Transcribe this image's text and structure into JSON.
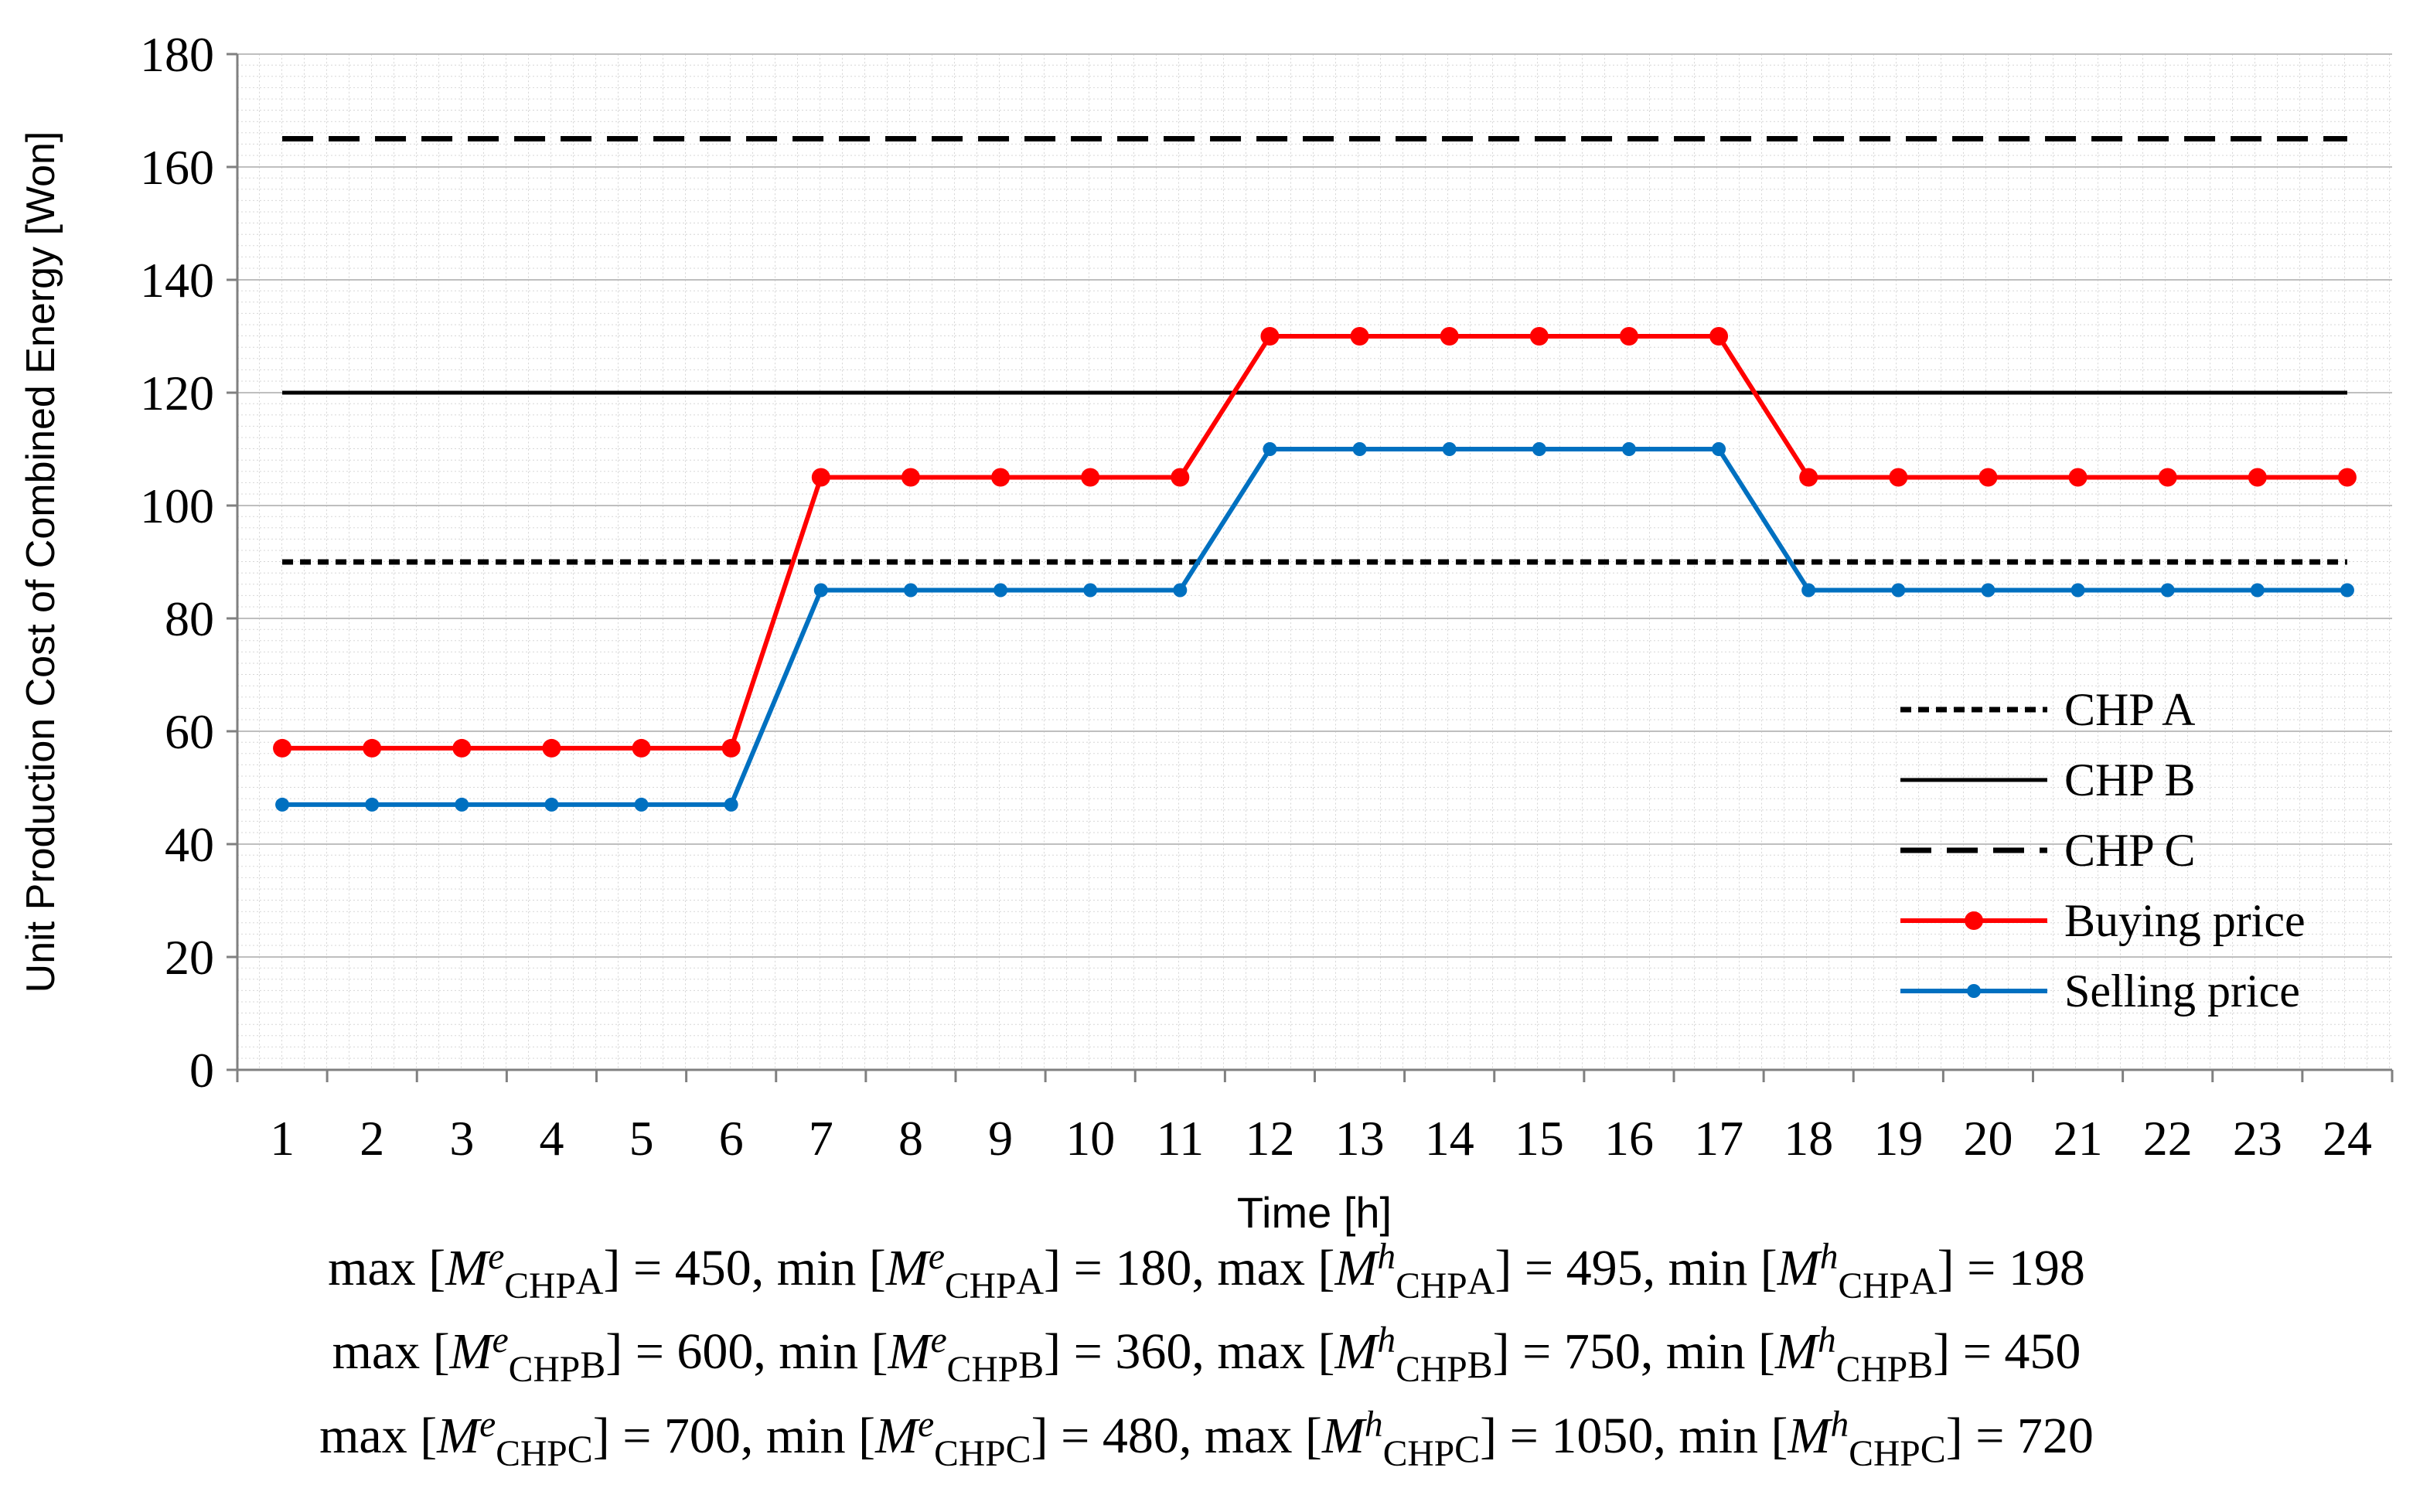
{
  "chart_data": {
    "type": "line",
    "xlabel": "Time [h]",
    "ylabel": "Unit Production Cost of Combined Energy [Won]",
    "ylim": [
      0,
      180
    ],
    "yticks": [
      0,
      20,
      40,
      60,
      80,
      100,
      120,
      140,
      160,
      180
    ],
    "categories": [
      "1",
      "2",
      "3",
      "4",
      "5",
      "6",
      "7",
      "8",
      "9",
      "10",
      "11",
      "12",
      "13",
      "14",
      "15",
      "16",
      "17",
      "18",
      "19",
      "20",
      "21",
      "22",
      "23",
      "24"
    ],
    "grid": "minor dotted",
    "legend_position": "lower-right",
    "series": [
      {
        "name": "CHP A",
        "style": "dotted",
        "color": "#000000",
        "values": [
          90,
          90,
          90,
          90,
          90,
          90,
          90,
          90,
          90,
          90,
          90,
          90,
          90,
          90,
          90,
          90,
          90,
          90,
          90,
          90,
          90,
          90,
          90,
          90
        ]
      },
      {
        "name": "CHP B",
        "style": "solid",
        "color": "#000000",
        "values": [
          120,
          120,
          120,
          120,
          120,
          120,
          120,
          120,
          120,
          120,
          120,
          120,
          120,
          120,
          120,
          120,
          120,
          120,
          120,
          120,
          120,
          120,
          120,
          120
        ]
      },
      {
        "name": "CHP C",
        "style": "dashed",
        "color": "#000000",
        "values": [
          165,
          165,
          165,
          165,
          165,
          165,
          165,
          165,
          165,
          165,
          165,
          165,
          165,
          165,
          165,
          165,
          165,
          165,
          165,
          165,
          165,
          165,
          165,
          165
        ]
      },
      {
        "name": "Buying price",
        "style": "solid-marker",
        "color": "#ff0000",
        "values": [
          57,
          57,
          57,
          57,
          57,
          57,
          105,
          105,
          105,
          105,
          105,
          130,
          130,
          130,
          130,
          130,
          130,
          105,
          105,
          105,
          105,
          105,
          105,
          105
        ]
      },
      {
        "name": "Selling price",
        "style": "solid-marker",
        "color": "#0070c0",
        "values": [
          47,
          47,
          47,
          47,
          47,
          47,
          85,
          85,
          85,
          85,
          85,
          110,
          110,
          110,
          110,
          110,
          110,
          85,
          85,
          85,
          85,
          85,
          85,
          85
        ]
      }
    ]
  },
  "captions": [
    {
      "p1": "max [",
      "sup1": "e",
      "sub1": "A",
      "p2": "] = 450, min [",
      "sup2": "e",
      "sub2": "A",
      "p3": "] = 180, max [",
      "sup3": "h",
      "sub3": "A",
      "p4": "] = 495, min [",
      "sup4": "h",
      "sub4": "A",
      "p5": "] = 198"
    },
    {
      "p1": "max [",
      "sup1": "e",
      "sub1": "B",
      "p2": "] = 600, min [",
      "sup2": "e",
      "sub2": "B",
      "p3": "] = 360, max [",
      "sup3": "h",
      "sub3": "B",
      "p4": "] = 750, min [",
      "sup4": "h",
      "sub4": "B",
      "p5": "] = 450"
    },
    {
      "p1": "max [",
      "sup1": "e",
      "sub1": "C",
      "p2": "] = 700, min [",
      "sup2": "e",
      "sub2": "C",
      "p3": "] = 480, max [",
      "sup3": "h",
      "sub3": "C",
      "p4": "] = 1050, min [",
      "sup4": "h",
      "sub4": "C",
      "p5": "] = 720"
    }
  ],
  "math": {
    "var": "M",
    "base": "CHP"
  }
}
